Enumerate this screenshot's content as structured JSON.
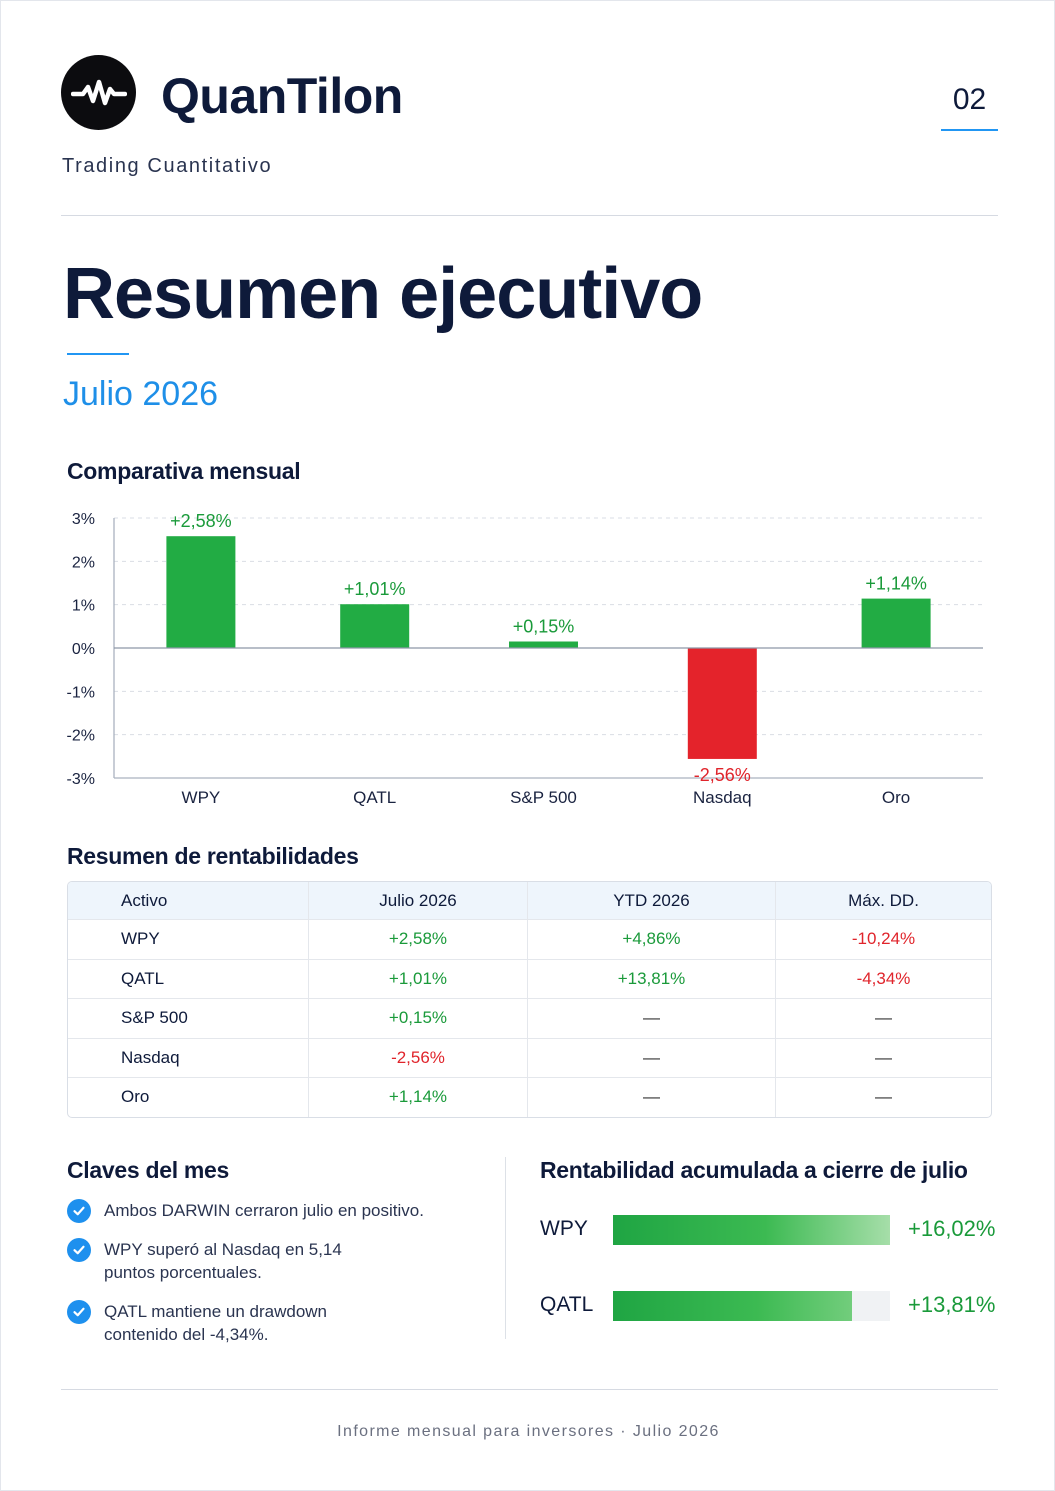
{
  "header": {
    "brand": "QuanTilon",
    "tagline": "Trading Cuantitativo",
    "page_number": "02"
  },
  "title": "Resumen ejecutivo",
  "subtitle": "Julio 2026",
  "chart_section": {
    "heading": "Comparativa mensual"
  },
  "chart_data": {
    "type": "bar",
    "categories": [
      "WPY",
      "QATL",
      "S&P 500",
      "Nasdaq",
      "Oro"
    ],
    "values": [
      2.58,
      1.01,
      0.15,
      -2.56,
      1.14
    ],
    "data_labels": [
      "+2,58%",
      "+1,01%",
      "+0,15%",
      "-2,56%",
      "+1,14%"
    ],
    "y_ticks": [
      3,
      2,
      1,
      0,
      -1,
      -2,
      -3
    ],
    "y_tick_labels": [
      "3%",
      "2%",
      "1%",
      "0%",
      "-1%",
      "-2%",
      "-3%"
    ],
    "ylim": [
      -3,
      3
    ],
    "title": "Comparativa mensual",
    "xlabel": "",
    "ylabel": "",
    "grid": true,
    "colors": {
      "positive": "#22ac44",
      "negative": "#e4232b"
    }
  },
  "table": {
    "heading": "Resumen de rentabilidades",
    "columns": [
      "Activo",
      "Julio 2026",
      "YTD 2026",
      "Máx. DD."
    ],
    "rows": [
      {
        "asset": "WPY",
        "julio": "+2,58%",
        "ytd": "+4,86%",
        "dd": "-10,24%"
      },
      {
        "asset": "QATL",
        "julio": "+1,01%",
        "ytd": "+13,81%",
        "dd": "-4,34%"
      },
      {
        "asset": "S&P 500",
        "julio": "+0,15%",
        "ytd": "—",
        "dd": "—"
      },
      {
        "asset": "Nasdaq",
        "julio": "-2,56%",
        "ytd": "—",
        "dd": "—"
      },
      {
        "asset": "Oro",
        "julio": "+1,14%",
        "ytd": "—",
        "dd": "—"
      }
    ]
  },
  "keys": {
    "heading": "Claves del mes",
    "items": [
      "Ambos DARWIN cerraron julio en positivo.",
      "WPY superó al Nasdaq en 5,14 puntos porcentuales.",
      "QATL mantiene un drawdown contenido del -4,34%."
    ]
  },
  "cumulative": {
    "heading": "Rentabilidad acumulada a cierre de julio",
    "items": [
      {
        "label": "WPY",
        "value": "+16,02%",
        "fraction": 1.0
      },
      {
        "label": "QATL",
        "value": "+13,81%",
        "fraction": 0.862
      }
    ]
  },
  "footer": "Informe mensual para inversores · Julio 2026",
  "colors": {
    "navy": "#0e1a3a",
    "accent": "#2196f3",
    "positive": "#1a9a3a",
    "negative": "#e0242b"
  }
}
